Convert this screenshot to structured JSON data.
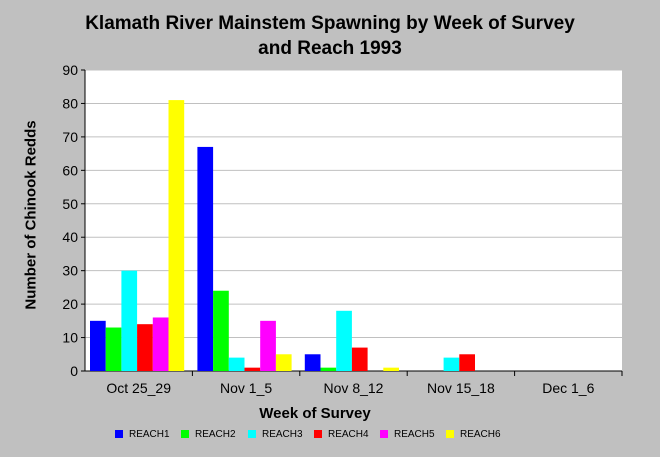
{
  "chart_data": {
    "type": "bar",
    "title": "Klamath River Mainstem Spawning by Week of Survey",
    "subtitle": "and Reach 1993",
    "xlabel": "Week of Survey",
    "ylabel": "Number of Chinook Redds",
    "ylim": [
      0,
      90
    ],
    "yticks": [
      0,
      10,
      20,
      30,
      40,
      50,
      60,
      70,
      80,
      90
    ],
    "grid": true,
    "legend_position": "bottom",
    "categories": [
      "Oct 25_29",
      "Nov 1_5",
      "Nov 8_12",
      "Nov 15_18",
      "Dec 1_6"
    ],
    "series": [
      {
        "name": "REACH1",
        "color": "#0000ff",
        "values": [
          15,
          67,
          5,
          0,
          0
        ]
      },
      {
        "name": "REACH2",
        "color": "#00ff00",
        "values": [
          13,
          24,
          1,
          0,
          0
        ]
      },
      {
        "name": "REACH3",
        "color": "#00ffff",
        "values": [
          30,
          4,
          18,
          4,
          0
        ]
      },
      {
        "name": "REACH4",
        "color": "#ff0000",
        "values": [
          14,
          1,
          7,
          5,
          0
        ]
      },
      {
        "name": "REACH5",
        "color": "#ff00ff",
        "values": [
          16,
          15,
          0,
          0,
          0
        ]
      },
      {
        "name": "REACH6",
        "color": "#ffff00",
        "values": [
          81,
          5,
          1,
          0,
          0
        ]
      }
    ]
  },
  "colors": {
    "background": "#c0c0c0",
    "plot_background": "#ffffff",
    "gridline": "#c0c0c0",
    "axis": "#000000"
  }
}
